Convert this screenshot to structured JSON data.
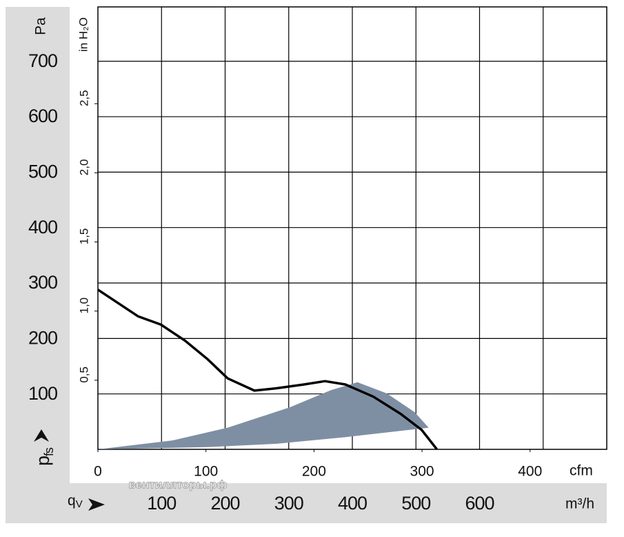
{
  "chart_data": {
    "type": "line",
    "y_title": "Pa",
    "y2_title": "in H₂O",
    "y_label": {
      "symbol": "p",
      "subscript": "fs"
    },
    "x_label": {
      "symbol": "q",
      "subscript": "V"
    },
    "x_title": "m³/h",
    "x2_title": "cfm",
    "watermark": "вентиляторы.рф",
    "xlim": [
      0,
      800
    ],
    "xticks": [
      100,
      200,
      300,
      400,
      500,
      600,
      {
        "value": 700,
        "label": null
      }
    ],
    "x2lim": [
      0,
      471
    ],
    "x2ticks": [
      0,
      100,
      200,
      300,
      400
    ],
    "ylim": [
      0,
      798
    ],
    "yticks": [
      100,
      200,
      300,
      400,
      500,
      600,
      700
    ],
    "y2lim": [
      0,
      3.2
    ],
    "y2ticks": [
      {
        "value": 0.5,
        "label": "0,5"
      },
      {
        "value": 1.0,
        "label": "1,0"
      },
      {
        "value": 1.5,
        "label": "1,5"
      },
      {
        "value": 2.0,
        "label": "2,0"
      },
      {
        "value": 2.5,
        "label": "2,5"
      }
    ],
    "grid": true,
    "series": [
      {
        "type": "line",
        "color": "#000000",
        "x": [
          0,
          63,
          99,
          137,
          172,
          204,
          246,
          280,
          324,
          357,
          389,
          433,
          476,
          509,
          533
        ],
        "values": [
          288,
          240,
          225,
          196,
          163,
          128,
          106,
          110,
          117,
          123,
          117,
          95,
          64,
          35,
          0
        ]
      },
      {
        "type": "area",
        "color": "#7f8fa3",
        "x": [
          0,
          117,
          204,
          302,
          367,
          408,
          454,
          498,
          520,
          389,
          280,
          172,
          0
        ],
        "values": [
          0,
          16,
          39,
          76,
          107,
          121,
          101,
          67,
          39,
          22,
          10,
          4,
          0
        ]
      }
    ]
  }
}
